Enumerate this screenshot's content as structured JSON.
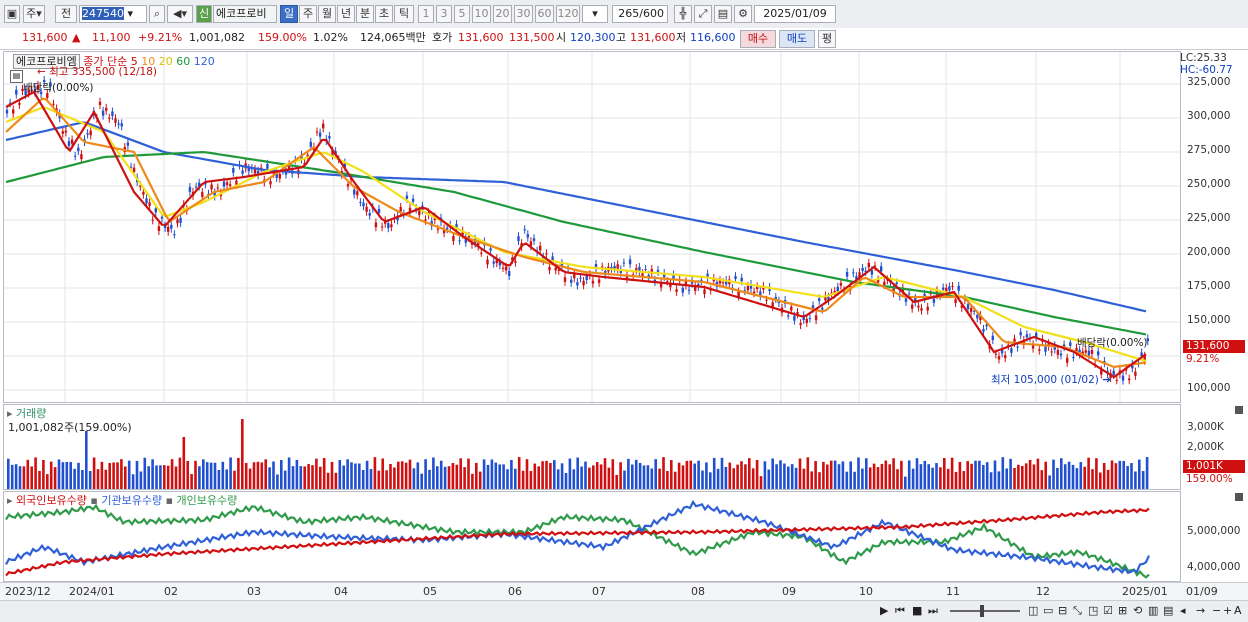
{
  "toolbar": {
    "period_label": "주",
    "prev_label": "전",
    "code": "247540",
    "search_icon": "search-icon",
    "sound_icon": "speaker-icon",
    "new_badge": "신",
    "stock_name": "에코프로비",
    "periods": [
      "일",
      "주",
      "월",
      "년",
      "분",
      "초",
      "틱"
    ],
    "intervals": [
      "1",
      "3",
      "5",
      "10",
      "20",
      "30",
      "60",
      "120"
    ],
    "count": "265",
    "count_max": "/600",
    "date": "2025/01/09"
  },
  "quote": {
    "price": "131,600",
    "arrow": "▲",
    "change": "11,100",
    "change_pct": "+9.21%",
    "volume": "1,001,082",
    "volume_ratio": "159.00%",
    "turnover": "1.02%",
    "amount": "124,065백만",
    "ask_label": "호가",
    "ask": "131,600",
    "bid": "131,500",
    "open_label": "시",
    "open": "120,300",
    "high_label": "고",
    "high": "131,600",
    "low_label": "저",
    "low": "116,600",
    "buy_label": "매수",
    "sell_label": "매도",
    "eval_label": "평"
  },
  "price_panel": {
    "legend_name": "에코프로비엠",
    "legend_type": "종가 단순",
    "ma_periods": [
      "5",
      "10",
      "20",
      "60",
      "120"
    ],
    "ma_colors": [
      "#cc1111",
      "#ee8a1a",
      "#f2e01a",
      "#1f9a3a",
      "#3060d8"
    ],
    "high_note": "최고 335,500 (12/18)",
    "dividend_note_left": "배당락(0.00%)",
    "dividend_note_right": "배당락(0.00%)",
    "low_note": "최저 105,000 (01/02)",
    "lc": "LC:25.33",
    "hc": "HC:-60.77",
    "current_tag": "131,600",
    "current_pct": "9.21%",
    "y_ticks": [
      "325,000",
      "300,000",
      "275,000",
      "250,000",
      "225,000",
      "200,000",
      "175,000",
      "150,000",
      "100,000"
    ]
  },
  "volume_panel": {
    "title": "거래량",
    "value": "1,001,082주(159.00%)",
    "y_ticks": [
      "3,000K",
      "2,000K"
    ],
    "current_tag": "1,001K",
    "current_pct": "159.00%"
  },
  "holdings_panel": {
    "series": [
      "외국인보유수량",
      "기관보유수량",
      "개인보유수량"
    ],
    "colors": [
      "#d01010",
      "#3060d8",
      "#2f9a4a"
    ],
    "y_ticks": [
      "5,000,000",
      "4,000,000"
    ]
  },
  "dates": [
    "2023/12",
    "2024/01",
    "02",
    "03",
    "04",
    "05",
    "06",
    "07",
    "08",
    "09",
    "10",
    "11",
    "12",
    "2025/01",
    "01/09"
  ],
  "bottom": {
    "zoom_out": "−",
    "zoom_in": "+",
    "font_label": "A"
  }
}
